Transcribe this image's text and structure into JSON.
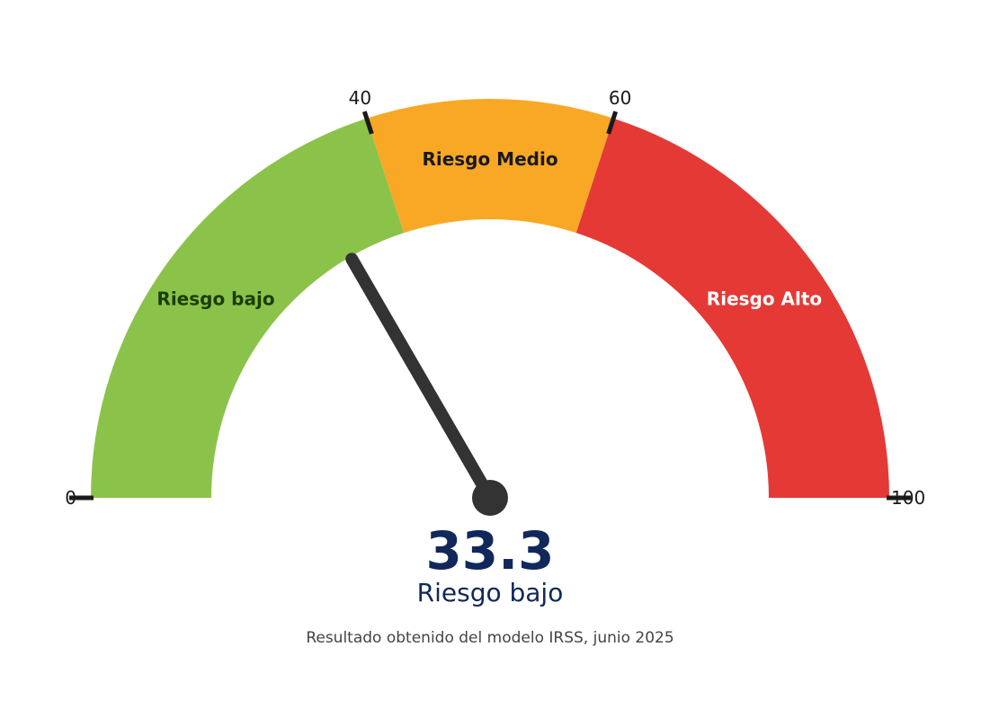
{
  "chart_data": {
    "type": "gauge",
    "min": 0,
    "max": 100,
    "value": 33.3,
    "value_label": "33.3",
    "status_label": "Riesgo bajo",
    "caption": "Resultado obtenido del modelo IRSS, junio 2025",
    "zones": [
      {
        "label": "Riesgo bajo",
        "from": 0,
        "to": 40,
        "color": "#8bc34a",
        "text_color": "#1b3d05"
      },
      {
        "label": "Riesgo Medio",
        "from": 40,
        "to": 60,
        "color": "#f9a825",
        "text_color": "#1a1a1a"
      },
      {
        "label": "Riesgo Alto",
        "from": 60,
        "to": 100,
        "color": "#e53935",
        "text_color": "#ffffff"
      }
    ],
    "ticks": [
      {
        "value": 0,
        "label": "0"
      },
      {
        "value": 40,
        "label": "40"
      },
      {
        "value": 60,
        "label": "60"
      },
      {
        "value": 100,
        "label": "100"
      }
    ],
    "needle_color": "#333333",
    "tick_color": "#1a1a1a"
  }
}
